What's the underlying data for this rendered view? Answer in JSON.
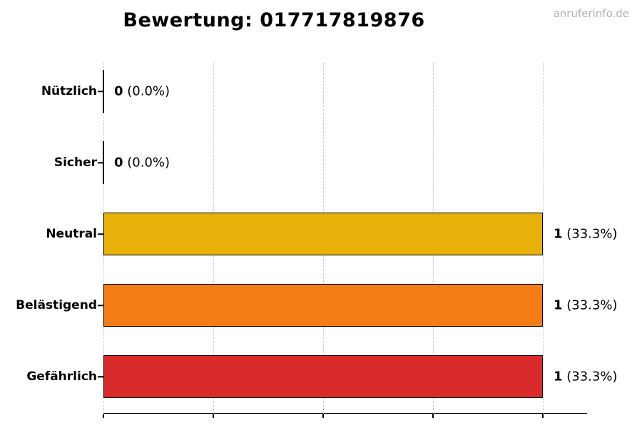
{
  "page": {
    "title": "Bewertung: 017717819876",
    "watermark": "anruferinfo.de"
  },
  "chart_data": {
    "type": "bar",
    "orientation": "horizontal",
    "title": "Bewertung: 017717819876",
    "watermark": "anruferinfo.de",
    "categories": [
      "Nützlich",
      "Sicher",
      "Neutral",
      "Belästigend",
      "Gefährlich"
    ],
    "values": [
      0,
      0,
      1,
      1,
      1
    ],
    "percentages": [
      "0.0%",
      "0.0%",
      "33.3%",
      "33.3%",
      "33.3%"
    ],
    "value_labels": [
      "0 (0.0%)",
      "0 (0.0%)",
      "1 (33.3%)",
      "1 (33.3%)",
      "1 (33.3%)"
    ],
    "bar_colors": [
      "#000000",
      "#000000",
      "#E7B109",
      "#F57D17",
      "#D92B2B"
    ],
    "bar_edge_color": "#000000",
    "xlim": [
      0,
      1.1
    ],
    "x_ticks": [
      0,
      0.25,
      0.5,
      0.75,
      1.0
    ],
    "x_tick_labels_visible": false,
    "grid": {
      "axis": "x",
      "style": "dashed",
      "color": "#cccccc"
    },
    "legend": null,
    "background": "#ffffff",
    "title_color": "#000000",
    "watermark_color": "#b0b0b0"
  }
}
